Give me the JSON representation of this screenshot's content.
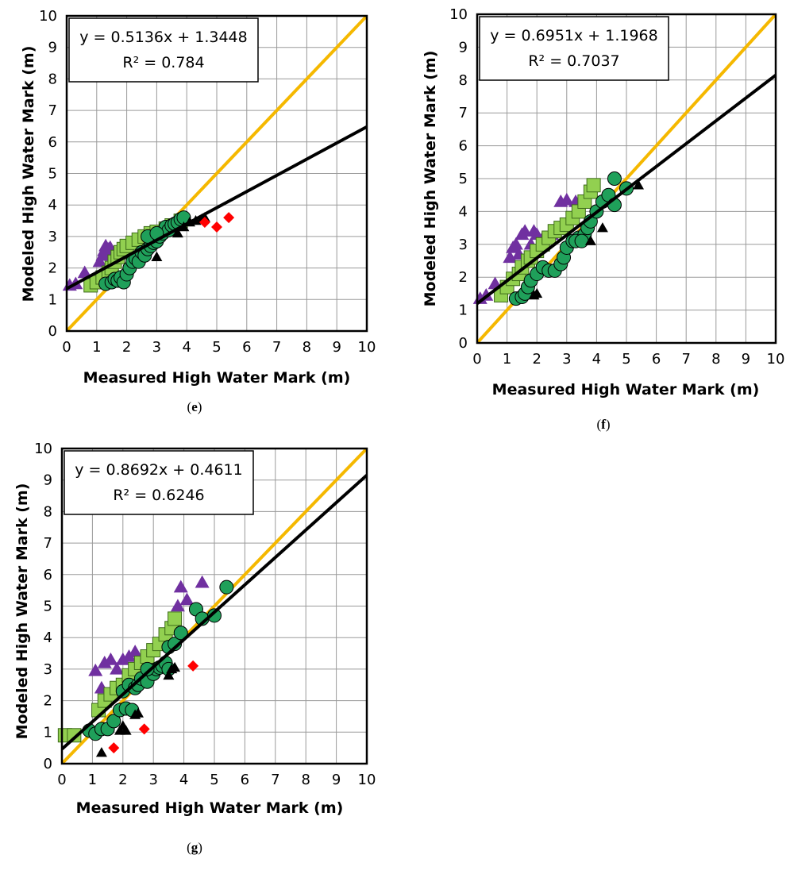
{
  "marker_colors": {
    "triangle_purple": "#7030a0",
    "square_green": "#92d050",
    "circle_green": "#1fa05a",
    "triangle_black": "#000000",
    "diamond_red": "#ff0000"
  },
  "line_colors": {
    "one_to_one": "#f5b800",
    "fit": "#000000"
  },
  "chart_data": [
    {
      "type": "scatter",
      "panel_label": "e",
      "xlabel": "Measured High Water Mark (m)",
      "ylabel": "Modeled High Water Mark (m)",
      "xlim": [
        0,
        10
      ],
      "ylim": [
        0,
        10
      ],
      "xticks": [
        "0",
        "1",
        "2",
        "3",
        "4",
        "5",
        "6",
        "7",
        "8",
        "9",
        "10"
      ],
      "yticks": [
        "0",
        "1",
        "2",
        "3",
        "4",
        "5",
        "6",
        "7",
        "8",
        "9",
        "10"
      ],
      "grid": true,
      "equation": "y = 0.5136x + 1.3448",
      "r_squared": "R² = 0.784",
      "fit": {
        "slope": 0.5136,
        "intercept": 1.3448
      },
      "series": [
        {
          "marker": "triangle_purple",
          "points": [
            [
              0.1,
              1.45
            ],
            [
              0.3,
              1.5
            ],
            [
              0.6,
              1.85
            ],
            [
              1.1,
              2.2
            ],
            [
              1.2,
              2.4
            ],
            [
              1.25,
              2.55
            ],
            [
              1.3,
              2.7
            ],
            [
              1.35,
              2.5
            ],
            [
              1.4,
              2.6
            ],
            [
              1.45,
              2.65
            ],
            [
              1.5,
              2.5
            ],
            [
              1.55,
              2.4
            ]
          ]
        },
        {
          "marker": "square_green",
          "points": [
            [
              0.8,
              1.45
            ],
            [
              1.0,
              1.55
            ],
            [
              1.2,
              1.7
            ],
            [
              1.4,
              1.85
            ],
            [
              1.5,
              2.0
            ],
            [
              1.6,
              2.2
            ],
            [
              1.7,
              2.35
            ],
            [
              1.8,
              2.5
            ],
            [
              1.9,
              2.6
            ],
            [
              2.0,
              2.7
            ],
            [
              2.2,
              2.8
            ],
            [
              2.4,
              2.9
            ],
            [
              2.6,
              3.0
            ],
            [
              2.8,
              3.1
            ],
            [
              3.0,
              3.15
            ],
            [
              3.3,
              3.25
            ],
            [
              3.5,
              3.35
            ],
            [
              3.8,
              3.5
            ]
          ]
        },
        {
          "marker": "circle_green",
          "points": [
            [
              1.3,
              1.5
            ],
            [
              1.5,
              1.55
            ],
            [
              1.6,
              1.65
            ],
            [
              1.7,
              1.6
            ],
            [
              1.8,
              1.7
            ],
            [
              1.9,
              1.55
            ],
            [
              2.0,
              1.8
            ],
            [
              2.1,
              2.0
            ],
            [
              2.2,
              2.2
            ],
            [
              2.3,
              2.3
            ],
            [
              2.4,
              2.2
            ],
            [
              2.5,
              2.5
            ],
            [
              2.6,
              2.4
            ],
            [
              2.7,
              2.6
            ],
            [
              2.8,
              2.7
            ],
            [
              2.9,
              2.8
            ],
            [
              3.0,
              2.85
            ],
            [
              3.1,
              3.0
            ],
            [
              3.2,
              3.1
            ],
            [
              3.3,
              3.3
            ],
            [
              3.4,
              3.2
            ],
            [
              3.5,
              3.35
            ],
            [
              3.6,
              3.4
            ],
            [
              3.7,
              3.45
            ],
            [
              3.8,
              3.55
            ],
            [
              3.9,
              3.6
            ],
            [
              2.7,
              3.0
            ],
            [
              3.0,
              3.1
            ]
          ]
        },
        {
          "marker": "triangle_black",
          "points": [
            [
              3.0,
              2.35
            ],
            [
              3.7,
              3.1
            ],
            [
              3.9,
              3.3
            ],
            [
              4.1,
              3.45
            ],
            [
              4.3,
              3.5
            ],
            [
              4.5,
              3.55
            ],
            [
              4.6,
              3.6
            ]
          ]
        },
        {
          "marker": "diamond_red",
          "points": [
            [
              4.6,
              3.45
            ],
            [
              5.0,
              3.3
            ],
            [
              5.4,
              3.6
            ]
          ]
        }
      ]
    },
    {
      "type": "scatter",
      "panel_label": "f",
      "xlabel": "Measured High Water Mark (m)",
      "ylabel": "Modeled High Water Mark (m)",
      "xlim": [
        0,
        10
      ],
      "ylim": [
        0,
        10
      ],
      "xticks": [
        "0",
        "1",
        "2",
        "3",
        "4",
        "5",
        "6",
        "7",
        "8",
        "9",
        "10"
      ],
      "yticks": [
        "0",
        "1",
        "2",
        "3",
        "4",
        "5",
        "6",
        "7",
        "8",
        "9",
        "10"
      ],
      "grid": true,
      "equation": "y = 0.6951x + 1.1968",
      "r_squared": "R² = 0.7037",
      "fit": {
        "slope": 0.6951,
        "intercept": 1.1968
      },
      "series": [
        {
          "marker": "triangle_purple",
          "points": [
            [
              0.1,
              1.35
            ],
            [
              0.3,
              1.45
            ],
            [
              0.6,
              1.8
            ],
            [
              1.1,
              2.6
            ],
            [
              1.2,
              2.9
            ],
            [
              1.3,
              3.0
            ],
            [
              1.4,
              2.7
            ],
            [
              1.5,
              3.3
            ],
            [
              1.6,
              3.4
            ],
            [
              1.8,
              3.0
            ],
            [
              1.9,
              3.4
            ],
            [
              2.0,
              3.3
            ],
            [
              2.2,
              3.2
            ],
            [
              2.5,
              3.3
            ],
            [
              2.8,
              4.3
            ],
            [
              3.0,
              4.35
            ],
            [
              3.3,
              4.3
            ]
          ]
        },
        {
          "marker": "square_green",
          "points": [
            [
              0.8,
              1.45
            ],
            [
              1.0,
              1.7
            ],
            [
              1.2,
              1.95
            ],
            [
              1.4,
              2.1
            ],
            [
              1.5,
              2.3
            ],
            [
              1.7,
              2.5
            ],
            [
              1.8,
              2.6
            ],
            [
              2.0,
              2.8
            ],
            [
              2.2,
              3.0
            ],
            [
              2.4,
              3.2
            ],
            [
              2.6,
              3.4
            ],
            [
              2.8,
              3.5
            ],
            [
              3.0,
              3.6
            ],
            [
              3.2,
              3.8
            ],
            [
              3.4,
              4.0
            ],
            [
              3.6,
              4.3
            ],
            [
              3.8,
              4.6
            ],
            [
              3.9,
              4.8
            ]
          ]
        },
        {
          "marker": "circle_green",
          "points": [
            [
              1.3,
              1.35
            ],
            [
              1.5,
              1.4
            ],
            [
              1.6,
              1.5
            ],
            [
              1.7,
              1.7
            ],
            [
              1.8,
              1.9
            ],
            [
              2.0,
              2.1
            ],
            [
              2.2,
              2.3
            ],
            [
              2.4,
              2.2
            ],
            [
              2.6,
              2.2
            ],
            [
              2.8,
              2.4
            ],
            [
              2.9,
              2.6
            ],
            [
              3.0,
              2.9
            ],
            [
              3.2,
              3.1
            ],
            [
              3.4,
              3.2
            ],
            [
              3.6,
              3.3
            ],
            [
              3.7,
              3.5
            ],
            [
              3.8,
              3.7
            ],
            [
              4.0,
              4.0
            ],
            [
              4.2,
              4.3
            ],
            [
              4.4,
              4.5
            ],
            [
              4.6,
              4.2
            ],
            [
              4.6,
              5.0
            ],
            [
              5.0,
              4.7
            ],
            [
              3.3,
              3.1
            ],
            [
              3.5,
              3.1
            ]
          ]
        },
        {
          "marker": "triangle_black",
          "points": [
            [
              1.9,
              1.45
            ],
            [
              2.0,
              1.5
            ],
            [
              3.8,
              3.1
            ],
            [
              4.2,
              3.5
            ],
            [
              5.4,
              4.8
            ]
          ]
        }
      ]
    },
    {
      "type": "scatter",
      "panel_label": "g",
      "xlabel": "Measured High Water Mark (m)",
      "ylabel": "Modeled High Water Mark (m)",
      "xlim": [
        0,
        10
      ],
      "ylim": [
        0,
        10
      ],
      "xticks": [
        "0",
        "1",
        "2",
        "3",
        "4",
        "5",
        "6",
        "7",
        "8",
        "9",
        "10"
      ],
      "yticks": [
        "0",
        "1",
        "2",
        "3",
        "4",
        "5",
        "6",
        "7",
        "8",
        "9",
        "10"
      ],
      "grid": true,
      "equation": "y = 0.8692x + 0.4611",
      "r_squared": "R² = 0.6246",
      "fit": {
        "slope": 0.8692,
        "intercept": 0.4611
      },
      "series": [
        {
          "marker": "triangle_purple",
          "points": [
            [
              1.1,
              2.95
            ],
            [
              1.3,
              2.4
            ],
            [
              1.4,
              3.2
            ],
            [
              1.6,
              3.3
            ],
            [
              1.8,
              3.0
            ],
            [
              2.0,
              3.3
            ],
            [
              2.2,
              3.4
            ],
            [
              2.4,
              3.55
            ],
            [
              3.9,
              5.6
            ],
            [
              4.1,
              5.2
            ],
            [
              4.6,
              5.75
            ],
            [
              3.8,
              5.0
            ]
          ]
        },
        {
          "marker": "square_green",
          "points": [
            [
              0.1,
              0.9
            ],
            [
              0.4,
              0.9
            ],
            [
              1.2,
              1.7
            ],
            [
              1.4,
              2.0
            ],
            [
              1.6,
              2.2
            ],
            [
              1.8,
              2.4
            ],
            [
              2.0,
              2.5
            ],
            [
              2.2,
              2.8
            ],
            [
              2.4,
              3.0
            ],
            [
              2.6,
              3.2
            ],
            [
              2.8,
              3.4
            ],
            [
              3.0,
              3.6
            ],
            [
              3.2,
              3.8
            ],
            [
              3.4,
              4.1
            ],
            [
              3.6,
              4.3
            ],
            [
              3.7,
              4.6
            ]
          ]
        },
        {
          "marker": "circle_green",
          "points": [
            [
              0.9,
              1.05
            ],
            [
              1.1,
              0.95
            ],
            [
              1.3,
              1.1
            ],
            [
              1.5,
              1.1
            ],
            [
              1.7,
              1.35
            ],
            [
              1.9,
              1.7
            ],
            [
              2.0,
              2.3
            ],
            [
              2.1,
              1.75
            ],
            [
              2.2,
              2.5
            ],
            [
              2.3,
              1.7
            ],
            [
              2.4,
              2.4
            ],
            [
              2.5,
              2.5
            ],
            [
              2.6,
              2.7
            ],
            [
              2.8,
              2.6
            ],
            [
              3.0,
              2.85
            ],
            [
              3.1,
              3.0
            ],
            [
              3.2,
              3.05
            ],
            [
              3.3,
              3.1
            ],
            [
              3.4,
              3.2
            ],
            [
              3.5,
              3.7
            ],
            [
              3.7,
              3.8
            ],
            [
              3.9,
              4.15
            ],
            [
              4.4,
              4.9
            ],
            [
              4.6,
              4.6
            ],
            [
              5.0,
              4.7
            ],
            [
              5.4,
              5.6
            ],
            [
              2.8,
              3.0
            ],
            [
              3.5,
              3.0
            ]
          ]
        },
        {
          "marker": "triangle_black",
          "points": [
            [
              1.3,
              0.35
            ],
            [
              1.9,
              1.05
            ],
            [
              2.0,
              1.2
            ],
            [
              2.1,
              1.05
            ],
            [
              2.4,
              1.55
            ],
            [
              2.5,
              1.6
            ],
            [
              3.5,
              2.8
            ],
            [
              3.6,
              3.0
            ],
            [
              3.7,
              3.05
            ]
          ]
        },
        {
          "marker": "diamond_red",
          "points": [
            [
              1.7,
              0.5
            ],
            [
              2.7,
              1.1
            ],
            [
              4.3,
              3.1
            ]
          ]
        }
      ]
    }
  ]
}
